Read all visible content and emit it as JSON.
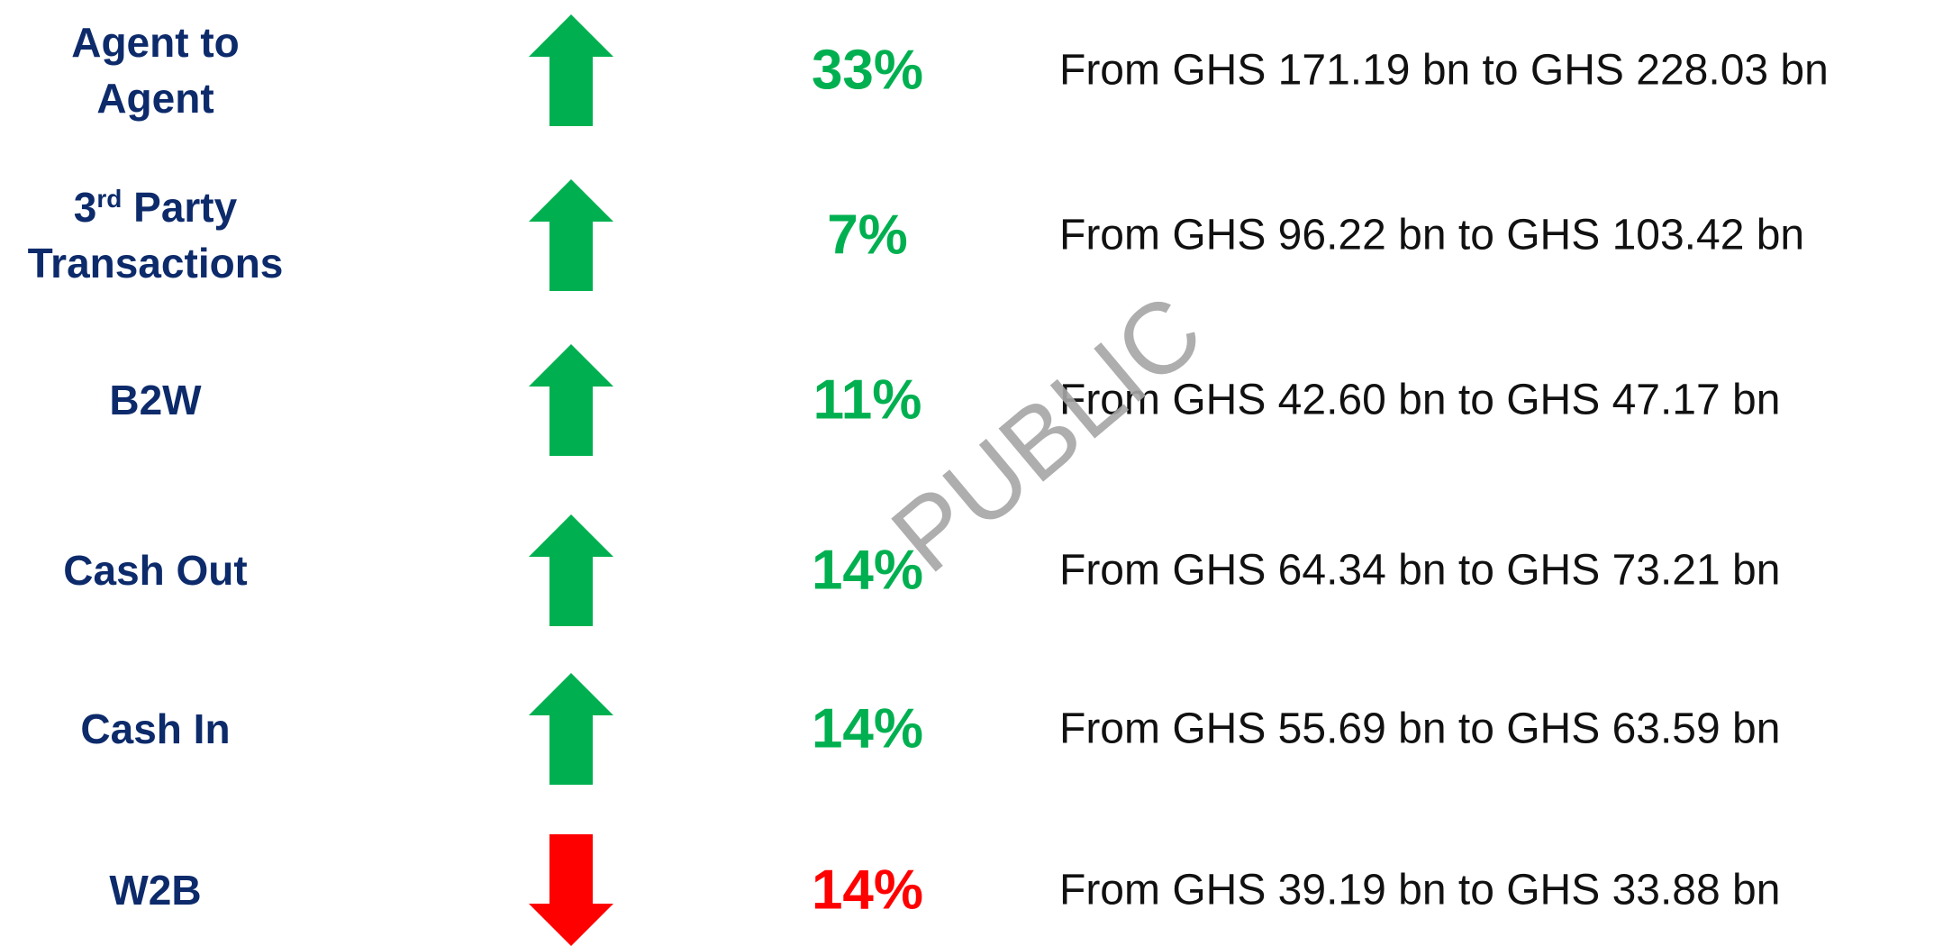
{
  "watermark": "PUBLIC",
  "rows": [
    {
      "label": [
        [
          "Agent to"
        ],
        [
          "Agent"
        ]
      ],
      "direction": "up",
      "color": "#00b050",
      "change": "33%",
      "detail": "From GHS 171.19 bn to GHS 228.03 bn"
    },
    {
      "label": [
        [
          "3",
          {
            "sup": "rd"
          },
          " Party"
        ],
        [
          "Transactions"
        ]
      ],
      "direction": "up",
      "color": "#00b050",
      "change": "7%",
      "detail": "From GHS 96.22 bn to GHS 103.42 bn"
    },
    {
      "label": [
        [
          "B2W"
        ]
      ],
      "direction": "up",
      "color": "#00b050",
      "change": "11%",
      "detail": "From GHS 42.60 bn to GHS 47.17 bn"
    },
    {
      "label": [
        [
          "Cash Out"
        ]
      ],
      "direction": "up",
      "color": "#00b050",
      "change": "14%",
      "detail": "From GHS 64.34 bn to GHS 73.21 bn"
    },
    {
      "label": [
        [
          "Cash In"
        ]
      ],
      "direction": "up",
      "color": "#00b050",
      "change": "14%",
      "detail": "From GHS 55.69 bn to GHS 63.59 bn"
    },
    {
      "label": [
        [
          "W2B"
        ]
      ],
      "direction": "down",
      "color": "#ff0000",
      "change": "14%",
      "detail": "From GHS 39.19 bn to GHS 33.88 bn"
    }
  ]
}
